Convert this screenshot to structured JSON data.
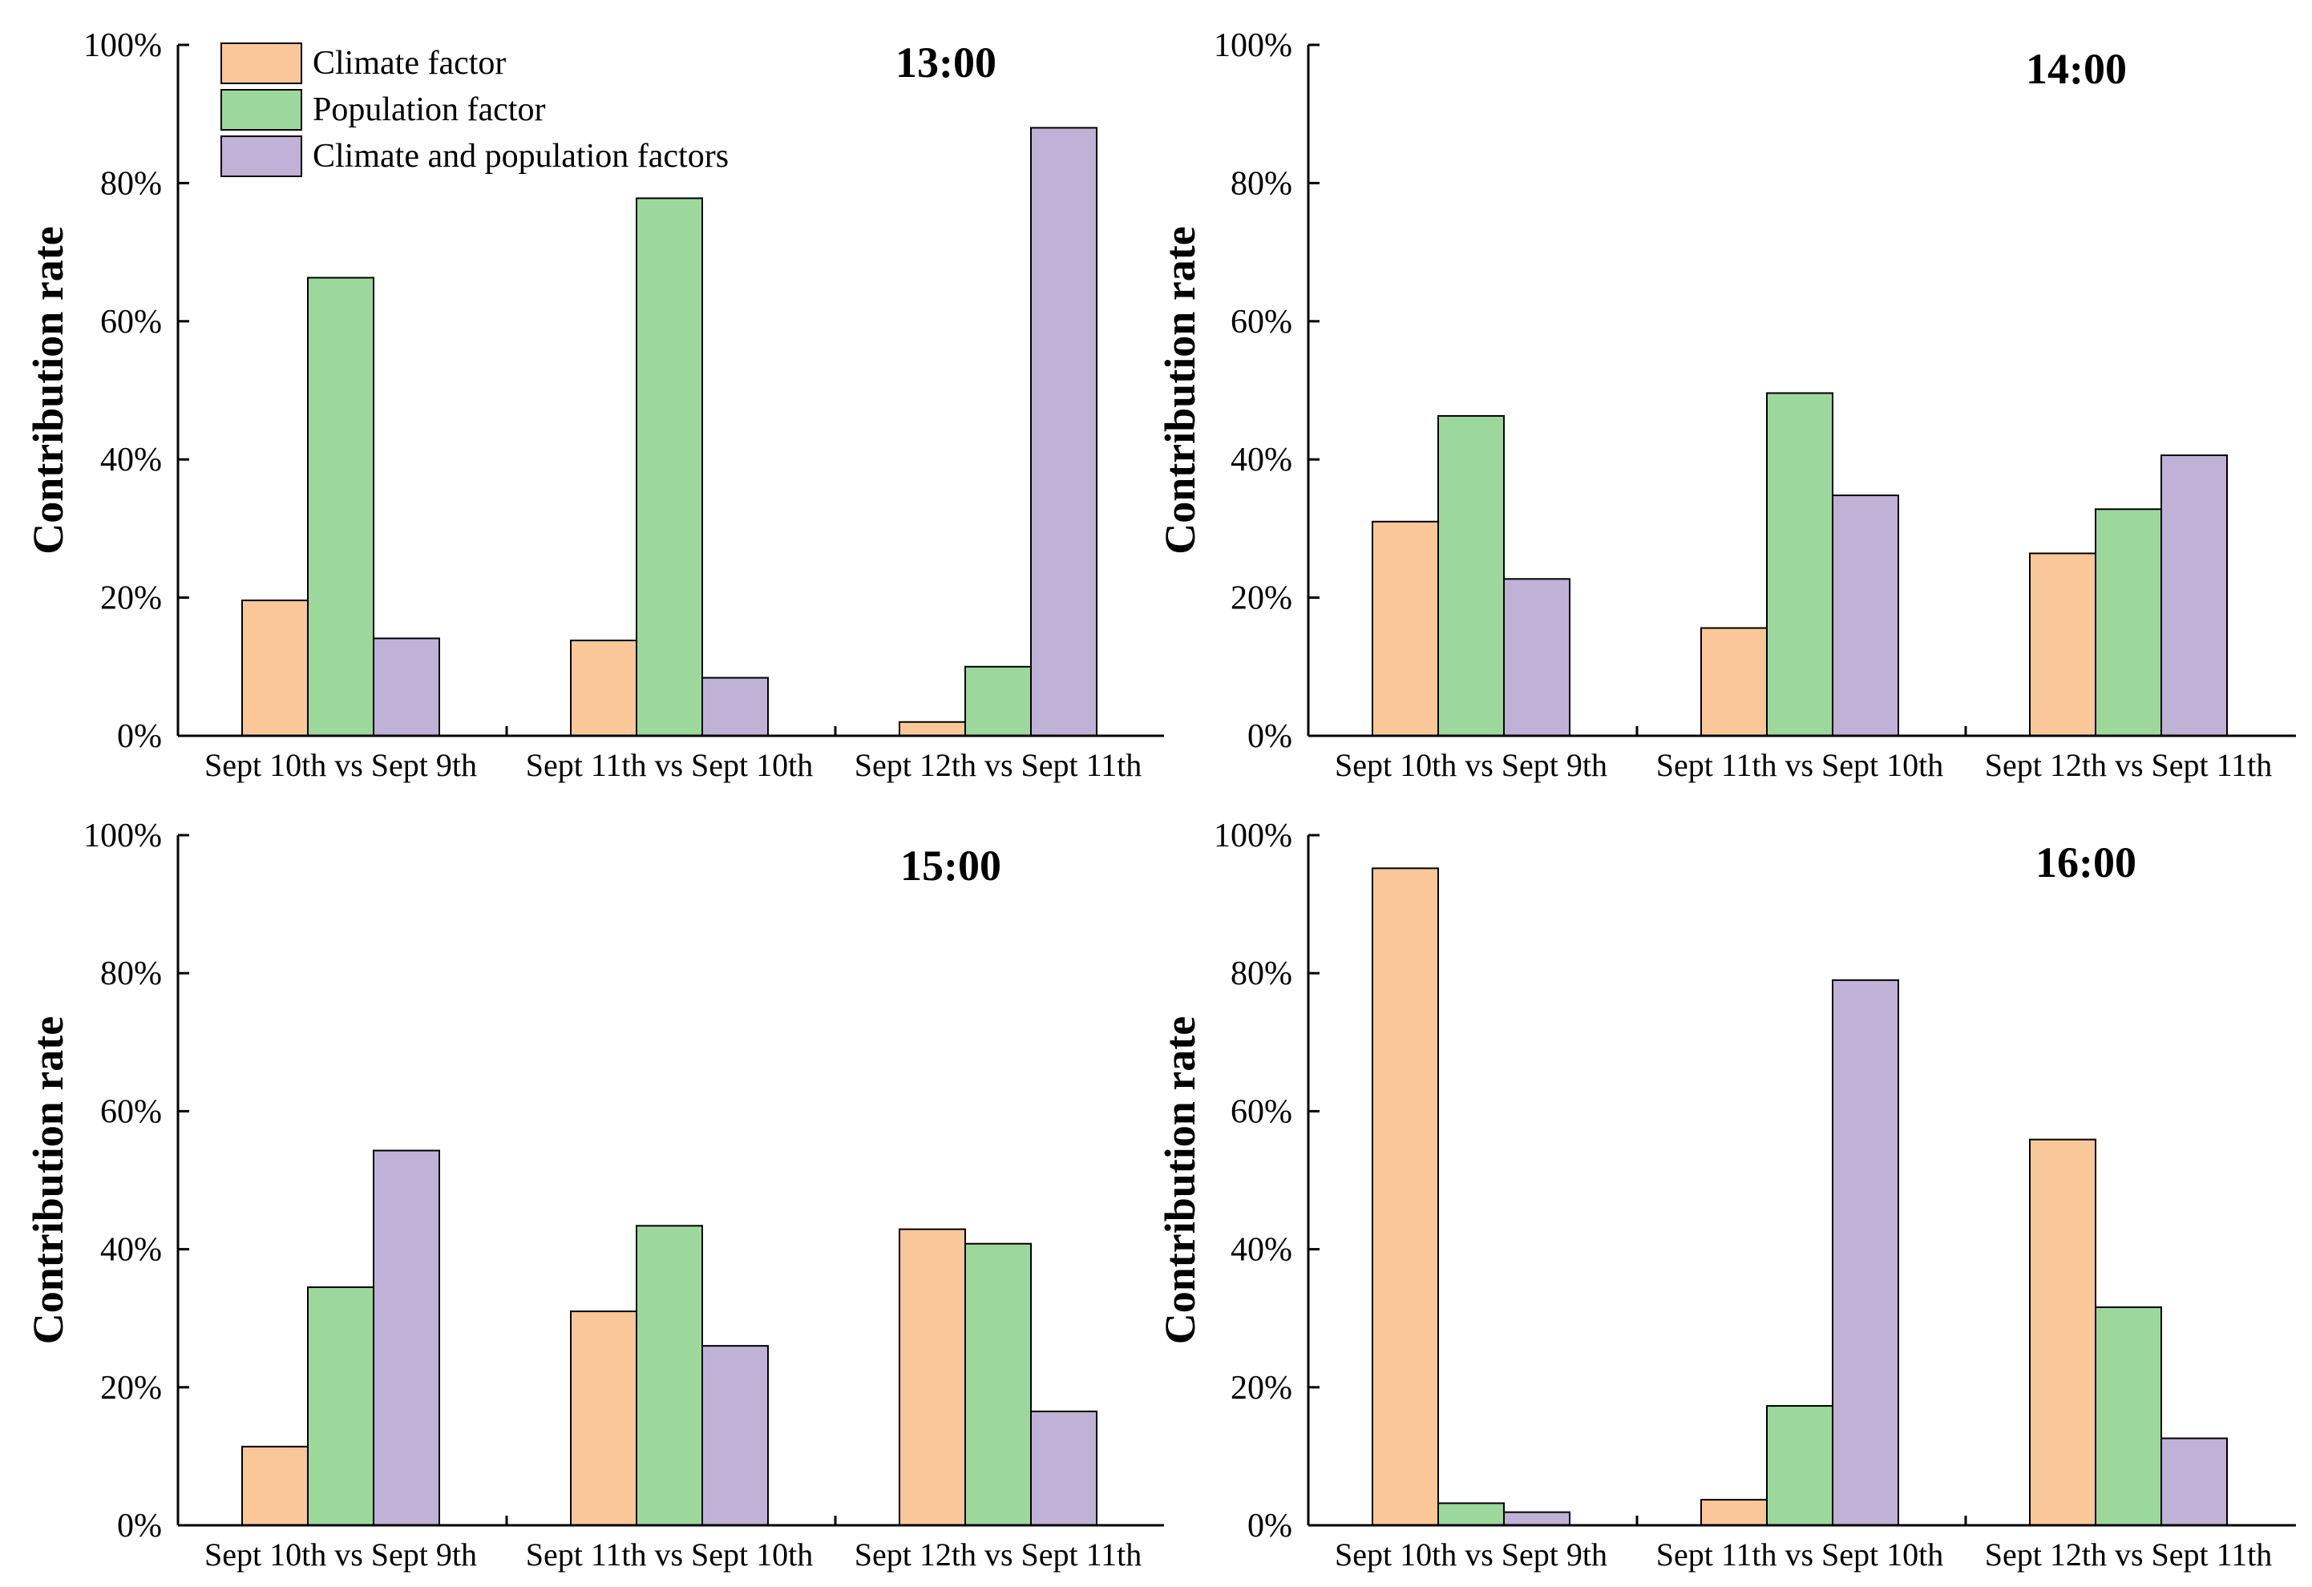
{
  "legend": {
    "entries": [
      {
        "name": "Climate factor",
        "color": "#FAC898"
      },
      {
        "name": "Population factor",
        "color": "#9CD89C"
      },
      {
        "name": "Climate and population factors",
        "color": "#C0B1D6"
      }
    ]
  },
  "chart_data": [
    {
      "type": "bar",
      "title": "13:00",
      "ylabel": "Contribution rate",
      "xlabel": "",
      "ylim": [
        0,
        100
      ],
      "yticks": [
        "0%",
        "20%",
        "40%",
        "60%",
        "80%",
        "100%"
      ],
      "categories": [
        "Sept 10th vs Sept 9th",
        "Sept 11th vs Sept 10th",
        "Sept 12th vs Sept 11th"
      ],
      "series": [
        {
          "name": "Climate factor",
          "values": [
            19.6,
            13.8,
            2.0
          ]
        },
        {
          "name": "Population factor",
          "values": [
            66.3,
            77.8,
            10.0
          ]
        },
        {
          "name": "Climate and population factors",
          "values": [
            14.1,
            8.4,
            88.0
          ]
        }
      ]
    },
    {
      "type": "bar",
      "title": "14:00",
      "ylabel": "Contribution rate",
      "xlabel": "",
      "ylim": [
        0,
        100
      ],
      "yticks": [
        "0%",
        "20%",
        "40%",
        "60%",
        "80%",
        "100%"
      ],
      "categories": [
        "Sept 10th vs Sept 9th",
        "Sept 11th vs Sept 10th",
        "Sept 12th vs Sept 11th"
      ],
      "series": [
        {
          "name": "Climate factor",
          "values": [
            31.0,
            15.6,
            26.4
          ]
        },
        {
          "name": "Population factor",
          "values": [
            46.3,
            49.6,
            32.8
          ]
        },
        {
          "name": "Climate and population factors",
          "values": [
            22.7,
            34.8,
            40.6
          ]
        }
      ]
    },
    {
      "type": "bar",
      "title": "15:00",
      "ylabel": "Contribution rate",
      "xlabel": "",
      "ylim": [
        0,
        100
      ],
      "yticks": [
        "0%",
        "20%",
        "40%",
        "60%",
        "80%",
        "100%"
      ],
      "categories": [
        "Sept 10th vs Sept 9th",
        "Sept 11th vs Sept 10th",
        "Sept 12th vs Sept 11th"
      ],
      "series": [
        {
          "name": "Climate factor",
          "values": [
            11.4,
            31.0,
            42.9
          ]
        },
        {
          "name": "Population factor",
          "values": [
            34.5,
            43.4,
            40.8
          ]
        },
        {
          "name": "Climate and population factors",
          "values": [
            54.3,
            26.0,
            16.5
          ]
        }
      ]
    },
    {
      "type": "bar",
      "title": "16:00",
      "ylabel": "Contribution rate",
      "xlabel": "",
      "ylim": [
        0,
        100
      ],
      "yticks": [
        "0%",
        "20%",
        "40%",
        "60%",
        "80%",
        "100%"
      ],
      "categories": [
        "Sept 10th vs Sept 9th",
        "Sept 11th vs Sept 10th",
        "Sept 12th vs Sept 11th"
      ],
      "series": [
        {
          "name": "Climate factor",
          "values": [
            95.2,
            3.7,
            55.9
          ]
        },
        {
          "name": "Population factor",
          "values": [
            3.2,
            17.3,
            31.6
          ]
        },
        {
          "name": "Climate and population factors",
          "values": [
            1.9,
            79.0,
            12.6
          ]
        }
      ]
    }
  ]
}
